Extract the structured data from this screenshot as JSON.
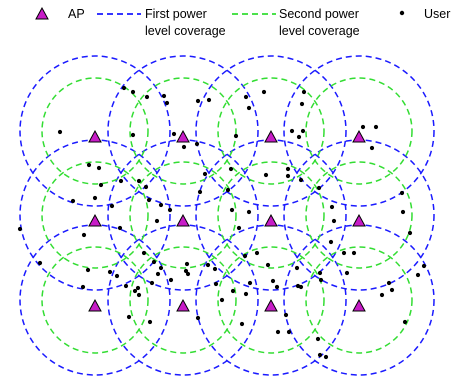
{
  "legend": {
    "ap_label": "AP",
    "first_label_line1": "First power",
    "first_label_line2": "level coverage",
    "second_label_line1": "Second power",
    "second_label_line2": "level coverage",
    "user_label": "User"
  },
  "colors": {
    "first_ring": "#1a1aff",
    "second_ring": "#33dd33",
    "ap_fill": "#c71cc7",
    "user": "#000000"
  },
  "grid": {
    "ap_rows": 3,
    "ap_cols": 4
  },
  "user_count": 112
}
